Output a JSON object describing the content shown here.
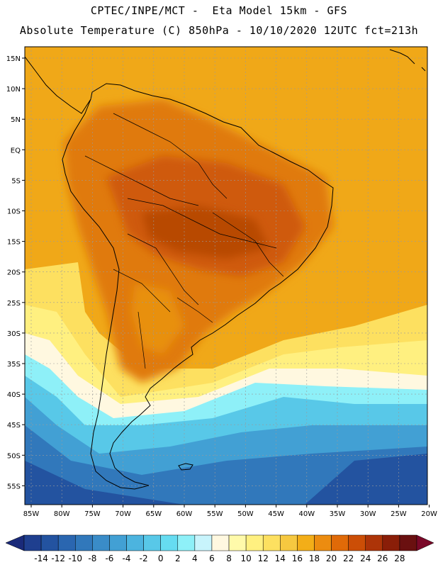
{
  "header": {
    "line1": "CPTEC/INPE/MCT -  Eta Model 15km - GFS",
    "line2": "Absolute Temperature (C) 850hPa - 10/10/2020 12UTC fct=213h"
  },
  "axes": {
    "lat_labels": [
      "15N",
      "10N",
      "5N",
      "EQ",
      "5S",
      "10S",
      "15S",
      "20S",
      "25S",
      "30S",
      "35S",
      "40S",
      "45S",
      "50S",
      "55S"
    ],
    "lon_labels": [
      "85W",
      "80W",
      "75W",
      "70W",
      "65W",
      "60W",
      "55W",
      "50W",
      "45W",
      "40W",
      "35W",
      "30W",
      "25W",
      "20W"
    ]
  },
  "colorbar": {
    "labels": [
      "-14",
      "-12",
      "-10",
      "-8",
      "-6",
      "-4",
      "-2",
      "0",
      "2",
      "4",
      "6",
      "8",
      "10",
      "12",
      "14",
      "16",
      "18",
      "20",
      "22",
      "24",
      "26",
      "28"
    ],
    "colors": [
      "#1f3f8f",
      "#2353a0",
      "#2a66b0",
      "#3178bb",
      "#3a8cc8",
      "#42a0d4",
      "#4cb4df",
      "#58c8e8",
      "#66dcf1",
      "#8ef0f8",
      "#c8f4fc",
      "#fff8e0",
      "#fffaaa",
      "#fff080",
      "#fde060",
      "#f6c840",
      "#f3ae18",
      "#ec8c10",
      "#e06a08",
      "#cc4e06",
      "#ad3408",
      "#8a1e08",
      "#6a1010"
    ],
    "low_arrow_color": "#1a2a7a",
    "high_arrow_color": "#7a0828"
  },
  "map_colors": {
    "ocean_warm": "#f0a818",
    "land_hot": "#e07a10",
    "land_core": "#cf5a08",
    "coast_line": "#000000",
    "grid_line": "#9a9a9a"
  }
}
